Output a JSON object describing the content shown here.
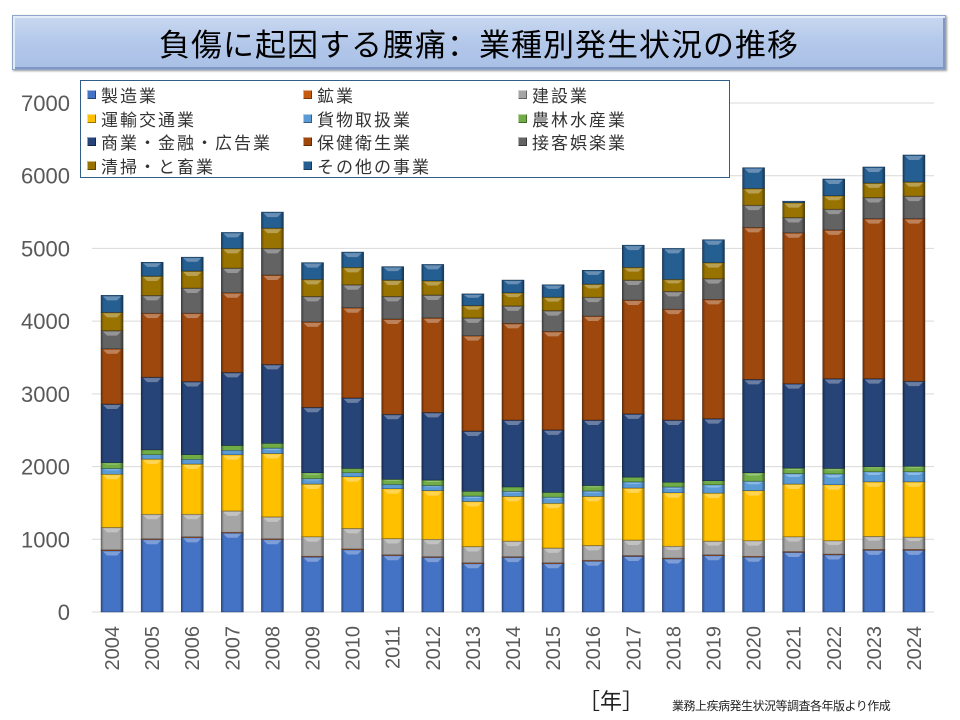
{
  "title": "負傷に起因する腰痛：業種別発生状況の推移",
  "x_unit_label": "［年］",
  "source_note": "業務上疾病発生状況等調査各年版より作成",
  "chart_data": {
    "type": "bar",
    "stacked": true,
    "title": "負傷に起因する腰痛：業種別発生状況の推移",
    "xlabel": "［年］",
    "ylabel": "",
    "ylim": [
      0,
      7000
    ],
    "yticks": [
      0,
      1000,
      2000,
      3000,
      4000,
      5000,
      6000,
      7000
    ],
    "grid": true,
    "legend_position": "top-left",
    "categories": [
      "2004",
      "2005",
      "2006",
      "2007",
      "2008",
      "2009",
      "2010",
      "2011",
      "2012",
      "2013",
      "2014",
      "2015",
      "2016",
      "2017",
      "2018",
      "2019",
      "2020",
      "2021",
      "2022",
      "2023",
      "2024"
    ],
    "series": [
      {
        "name": "製造業",
        "color": "#4472c4",
        "values": [
          845,
          1000,
          1027,
          1090,
          1000,
          760,
          860,
          780,
          755,
          670,
          755,
          670,
          705,
          770,
          735,
          780,
          760,
          825,
          790,
          855,
          855
        ]
      },
      {
        "name": "鉱業",
        "color": "#c55a11",
        "values": [
          10,
          8,
          8,
          8,
          8,
          8,
          8,
          8,
          7,
          7,
          7,
          7,
          7,
          7,
          7,
          7,
          7,
          7,
          7,
          7,
          7
        ]
      },
      {
        "name": "建設業",
        "color": "#a5a5a5",
        "values": [
          308,
          337,
          310,
          292,
          300,
          267,
          282,
          222,
          238,
          223,
          213,
          203,
          203,
          213,
          163,
          188,
          213,
          203,
          183,
          178,
          168
        ]
      },
      {
        "name": "運輸交通業",
        "color": "#ffc000",
        "values": [
          732,
          758,
          690,
          772,
          872,
          725,
          710,
          685,
          670,
          620,
          615,
          615,
          675,
          715,
          735,
          660,
          690,
          725,
          770,
          750,
          760
        ]
      },
      {
        "name": "貨物取扱業",
        "color": "#5b9bd5",
        "values": [
          80,
          62,
          65,
          63,
          75,
          75,
          55,
          60,
          70,
          75,
          70,
          85,
          75,
          85,
          80,
          115,
          130,
          145,
          150,
          140,
          140
        ]
      },
      {
        "name": "農林水産業",
        "color": "#70ad47",
        "values": [
          80,
          65,
          65,
          65,
          65,
          80,
          60,
          70,
          75,
          65,
          60,
          65,
          75,
          65,
          65,
          55,
          115,
          75,
          75,
          70,
          75
        ]
      },
      {
        "name": "商業・金融・広告業",
        "color": "#264478",
        "values": [
          805,
          1000,
          1005,
          1005,
          1085,
          900,
          970,
          895,
          930,
          830,
          920,
          860,
          900,
          870,
          855,
          855,
          1285,
          1160,
          1235,
          1210,
          1170
        ]
      },
      {
        "name": "保健衛生業",
        "color": "#9e480e",
        "values": [
          760,
          880,
          940,
          1095,
          1230,
          1175,
          1240,
          1310,
          1300,
          1310,
          1330,
          1355,
          1430,
          1565,
          1525,
          1640,
          2090,
          2075,
          2045,
          2200,
          2235
        ]
      },
      {
        "name": "接客娯楽業",
        "color": "#636363",
        "values": [
          250,
          245,
          345,
          340,
          365,
          350,
          315,
          310,
          315,
          245,
          240,
          285,
          260,
          275,
          245,
          285,
          305,
          210,
          285,
          290,
          310
        ]
      },
      {
        "name": "清掃・と畜業",
        "color": "#997300",
        "values": [
          250,
          265,
          235,
          270,
          280,
          235,
          240,
          225,
          195,
          170,
          180,
          185,
          180,
          175,
          165,
          220,
          230,
          205,
          185,
          200,
          195
        ]
      },
      {
        "name": "その他の事業",
        "color": "#255e91",
        "values": [
          235,
          190,
          190,
          220,
          220,
          230,
          210,
          185,
          225,
          160,
          175,
          170,
          190,
          305,
          425,
          315,
          285,
          20,
          230,
          220,
          370
        ]
      }
    ]
  }
}
